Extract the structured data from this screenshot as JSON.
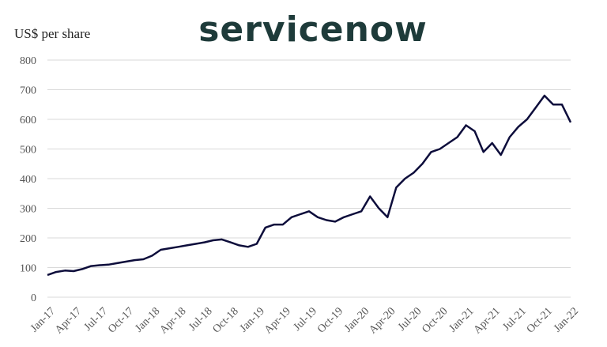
{
  "chart_data": {
    "type": "line",
    "title": "servicenow",
    "y_label": "US$ per share",
    "categories": [
      "Jan-17",
      null,
      null,
      "Apr-17",
      null,
      null,
      "Jul-17",
      null,
      null,
      "Oct-17",
      null,
      null,
      "Jan-18",
      null,
      null,
      "Apr-18",
      null,
      null,
      "Jul-18",
      null,
      null,
      "Oct-18",
      null,
      null,
      "Jan-19",
      null,
      null,
      "Apr-19",
      null,
      null,
      "Jul-19",
      null,
      null,
      "Oct-19",
      null,
      null,
      "Jan-20",
      null,
      null,
      "Apr-20",
      null,
      null,
      "Jul-20",
      null,
      null,
      "Oct-20",
      null,
      null,
      "Jan-21",
      null,
      null,
      "Apr-21",
      null,
      null,
      "Jul-21",
      null,
      null,
      "Oct-21",
      null,
      null,
      "Jan-22"
    ],
    "series": [
      {
        "color": "#0d0d3b",
        "values": [
          75,
          85,
          90,
          88,
          95,
          105,
          108,
          110,
          115,
          120,
          125,
          128,
          140,
          160,
          165,
          170,
          175,
          180,
          185,
          192,
          195,
          185,
          175,
          170,
          180,
          235,
          245,
          245,
          270,
          280,
          290,
          270,
          260,
          255,
          270,
          280,
          290,
          340,
          300,
          270,
          370,
          400,
          420,
          450,
          490,
          500,
          520,
          540,
          580,
          560,
          490,
          520,
          480,
          540,
          575,
          600,
          640,
          680,
          650,
          650,
          590
        ]
      }
    ],
    "ylim": [
      0,
      800
    ],
    "yticks": [
      0,
      100,
      200,
      300,
      400,
      500,
      600,
      700,
      800
    ],
    "grid": true
  }
}
